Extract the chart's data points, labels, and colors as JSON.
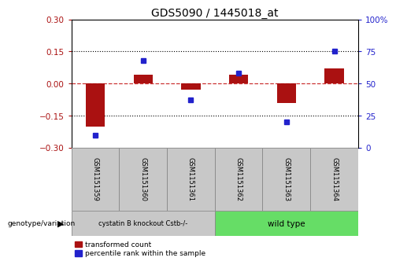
{
  "title": "GDS5090 / 1445018_at",
  "samples": [
    "GSM1151359",
    "GSM1151360",
    "GSM1151361",
    "GSM1151362",
    "GSM1151363",
    "GSM1151364"
  ],
  "red_values": [
    -0.2,
    0.04,
    -0.03,
    0.04,
    -0.09,
    0.07
  ],
  "blue_values": [
    10,
    68,
    37,
    58,
    20,
    75
  ],
  "ylim_left": [
    -0.3,
    0.3
  ],
  "ylim_right": [
    0,
    100
  ],
  "yticks_left": [
    -0.3,
    -0.15,
    0,
    0.15,
    0.3
  ],
  "yticks_right": [
    0,
    25,
    50,
    75,
    100
  ],
  "red_color": "#AA1111",
  "blue_color": "#2222CC",
  "dashed_color": "#CC3333",
  "dotted_color": "#000000",
  "group1_label": "cystatin B knockout Cstb-/-",
  "group2_label": "wild type",
  "group1_color": "#C8C8C8",
  "group2_color": "#66DD66",
  "legend_red": "transformed count",
  "legend_blue": "percentile rank within the sample",
  "genotype_label": "genotype/variation",
  "title_fontsize": 10,
  "axis_fontsize": 7.5,
  "tick_fontsize": 7.5
}
